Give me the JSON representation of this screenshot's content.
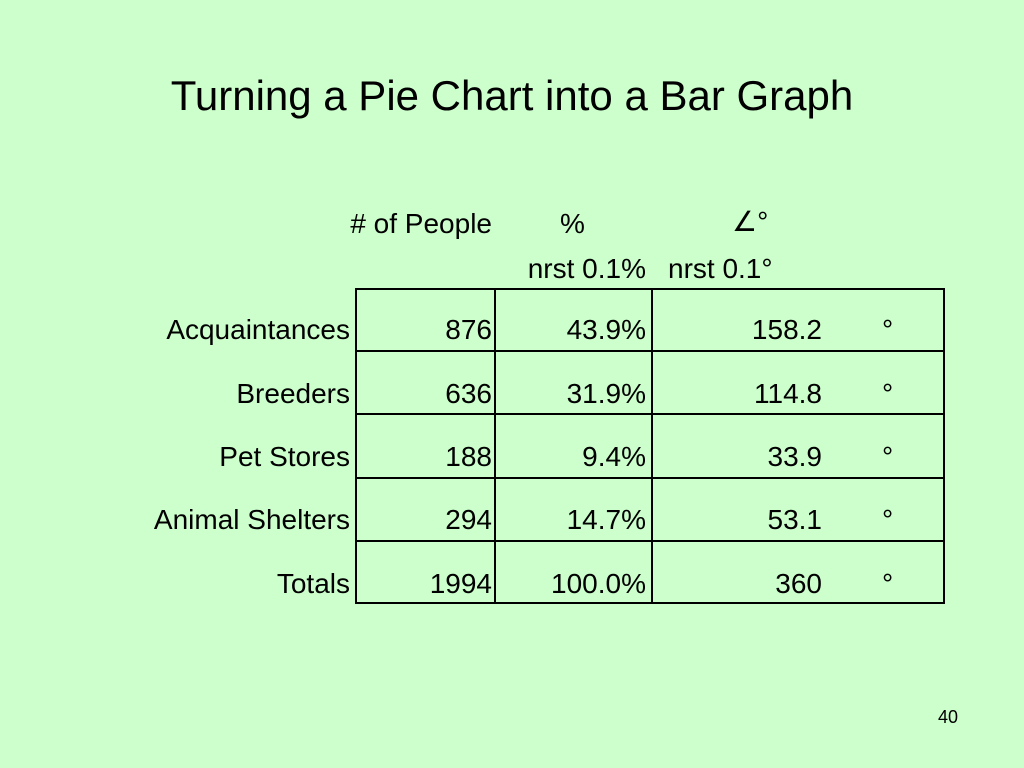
{
  "slide": {
    "title": "Turning a Pie Chart into a Bar Graph",
    "page_number": "40"
  },
  "table": {
    "headers": {
      "people": "# of People",
      "percent": "%",
      "angle": "∠°",
      "percent_sub": "nrst 0.1%",
      "angle_sub": "nrst 0.1°"
    },
    "degree_symbol": "°",
    "rows": [
      {
        "label": "Acquaintances",
        "people": "876",
        "percent": "43.9%",
        "degrees": "158.2"
      },
      {
        "label": "Breeders",
        "people": "636",
        "percent": "31.9%",
        "degrees": "114.8"
      },
      {
        "label": "Pet Stores",
        "people": "188",
        "percent": "9.4%",
        "degrees": "33.9"
      },
      {
        "label": "Animal Shelters",
        "people": "294",
        "percent": "14.7%",
        "degrees": "53.1"
      },
      {
        "label": "Totals",
        "people": "1994",
        "percent": "100.0%",
        "degrees": "360"
      }
    ]
  }
}
